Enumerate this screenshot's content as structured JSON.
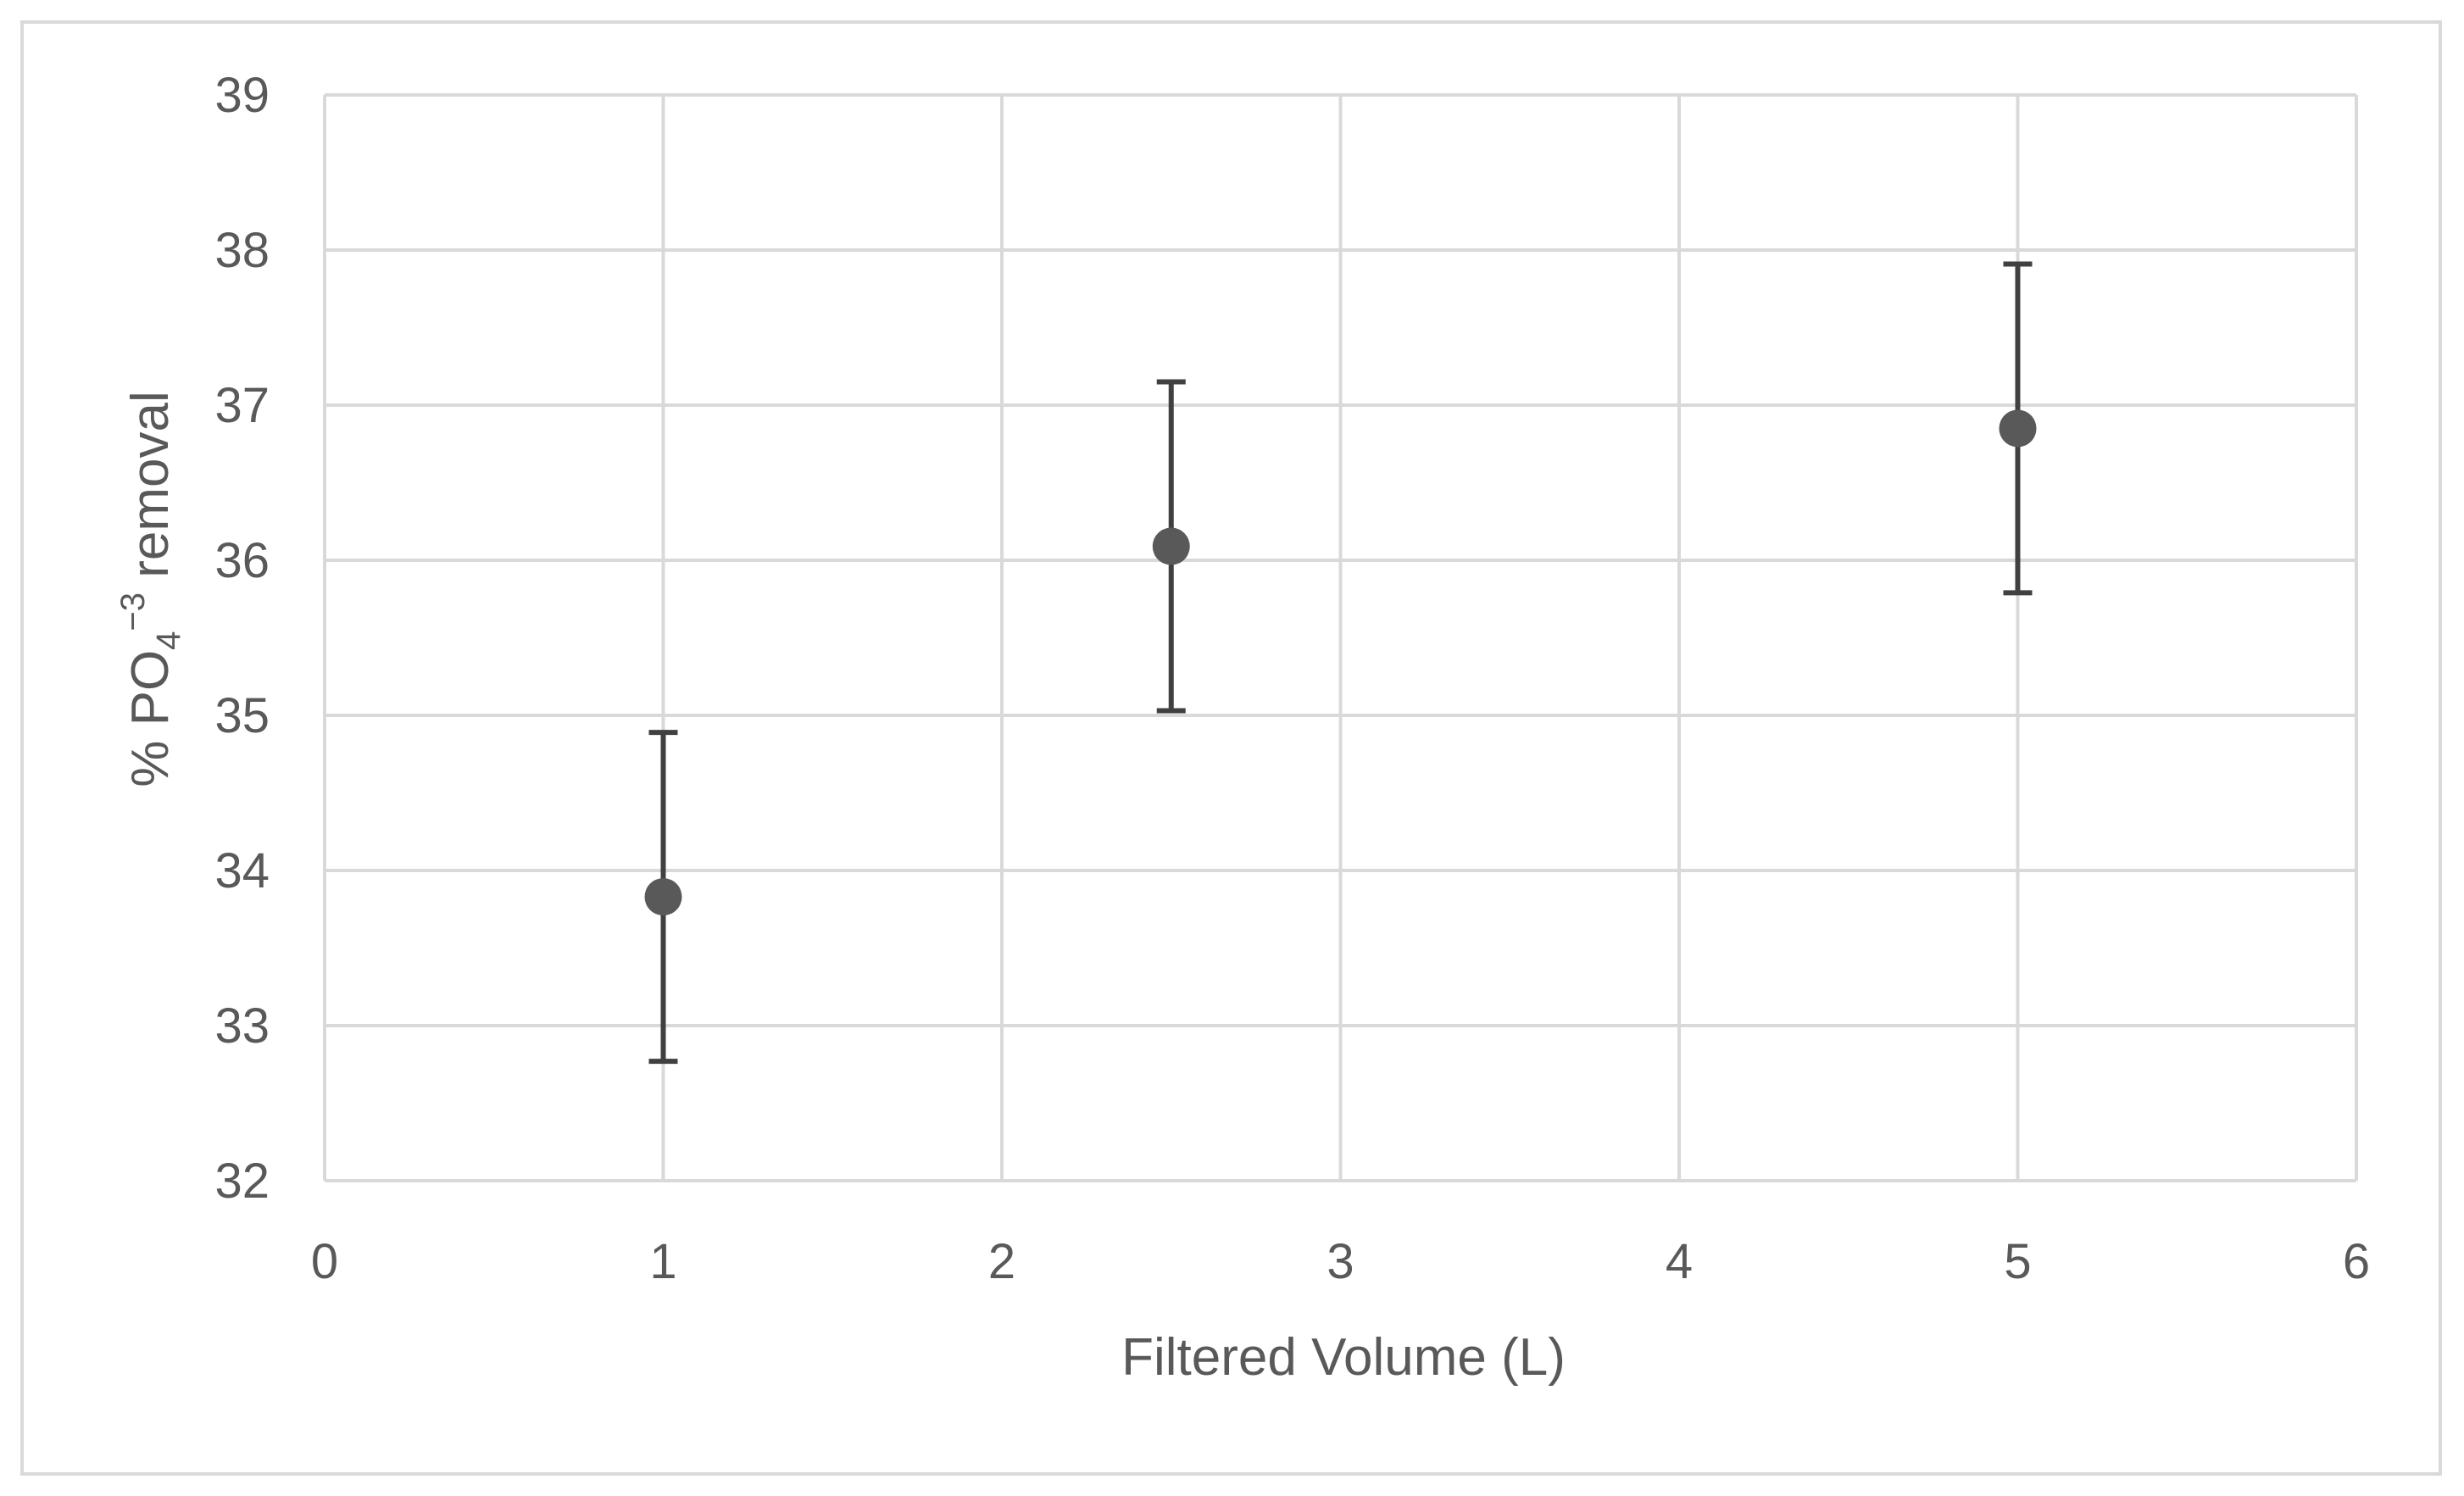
{
  "chart_data": {
    "type": "scatter",
    "title": "",
    "xlabel": "Filtered Volume (L)",
    "ylabel": {
      "prefix": "% PO",
      "subscript": "4",
      "superscript": "−3",
      "suffix": " removal"
    },
    "xlim": [
      0,
      6
    ],
    "ylim": [
      32,
      39
    ],
    "x_ticks": [
      "0",
      "1",
      "2",
      "3",
      "4",
      "5",
      "6"
    ],
    "y_ticks": [
      "32",
      "33",
      "34",
      "35",
      "36",
      "37",
      "38",
      "39"
    ],
    "grid": true,
    "series": [
      {
        "x": [
          1,
          2.5,
          5
        ],
        "y": [
          33.83,
          36.09,
          36.85
        ],
        "error": [
          1.06,
          1.06,
          1.06
        ]
      }
    ]
  },
  "colors": {
    "marker": "#595959",
    "error_bar": "#404040",
    "grid": "#d9d9d9",
    "text": "#595959",
    "frame": "#d9d9d9"
  }
}
